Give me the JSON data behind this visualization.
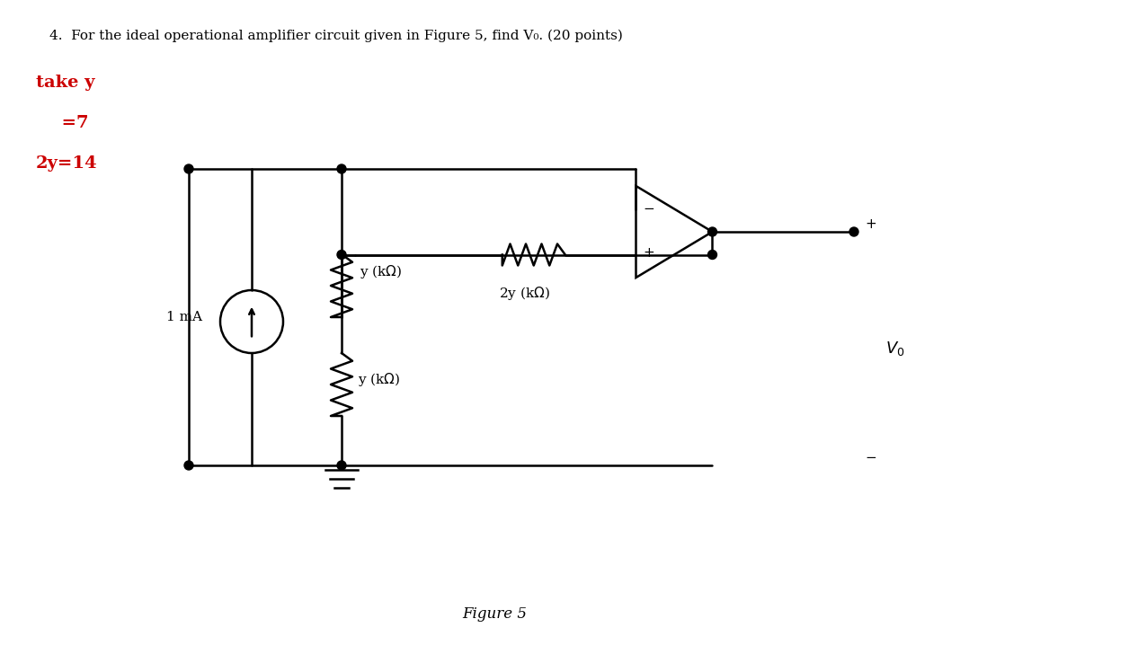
{
  "title_line": "4.  For the ideal operational amplifier circuit given in Figure 5, find V₀. (20 points)",
  "red_text": [
    "take y",
    "  =7",
    "2y=14"
  ],
  "figure_label": "Figure 5",
  "background_color": "#ffffff",
  "text_color": "#000000",
  "red_color": "#cc0000",
  "circuit_color": "#000000",
  "figsize": [
    12.66,
    7.38
  ],
  "dpi": 100
}
